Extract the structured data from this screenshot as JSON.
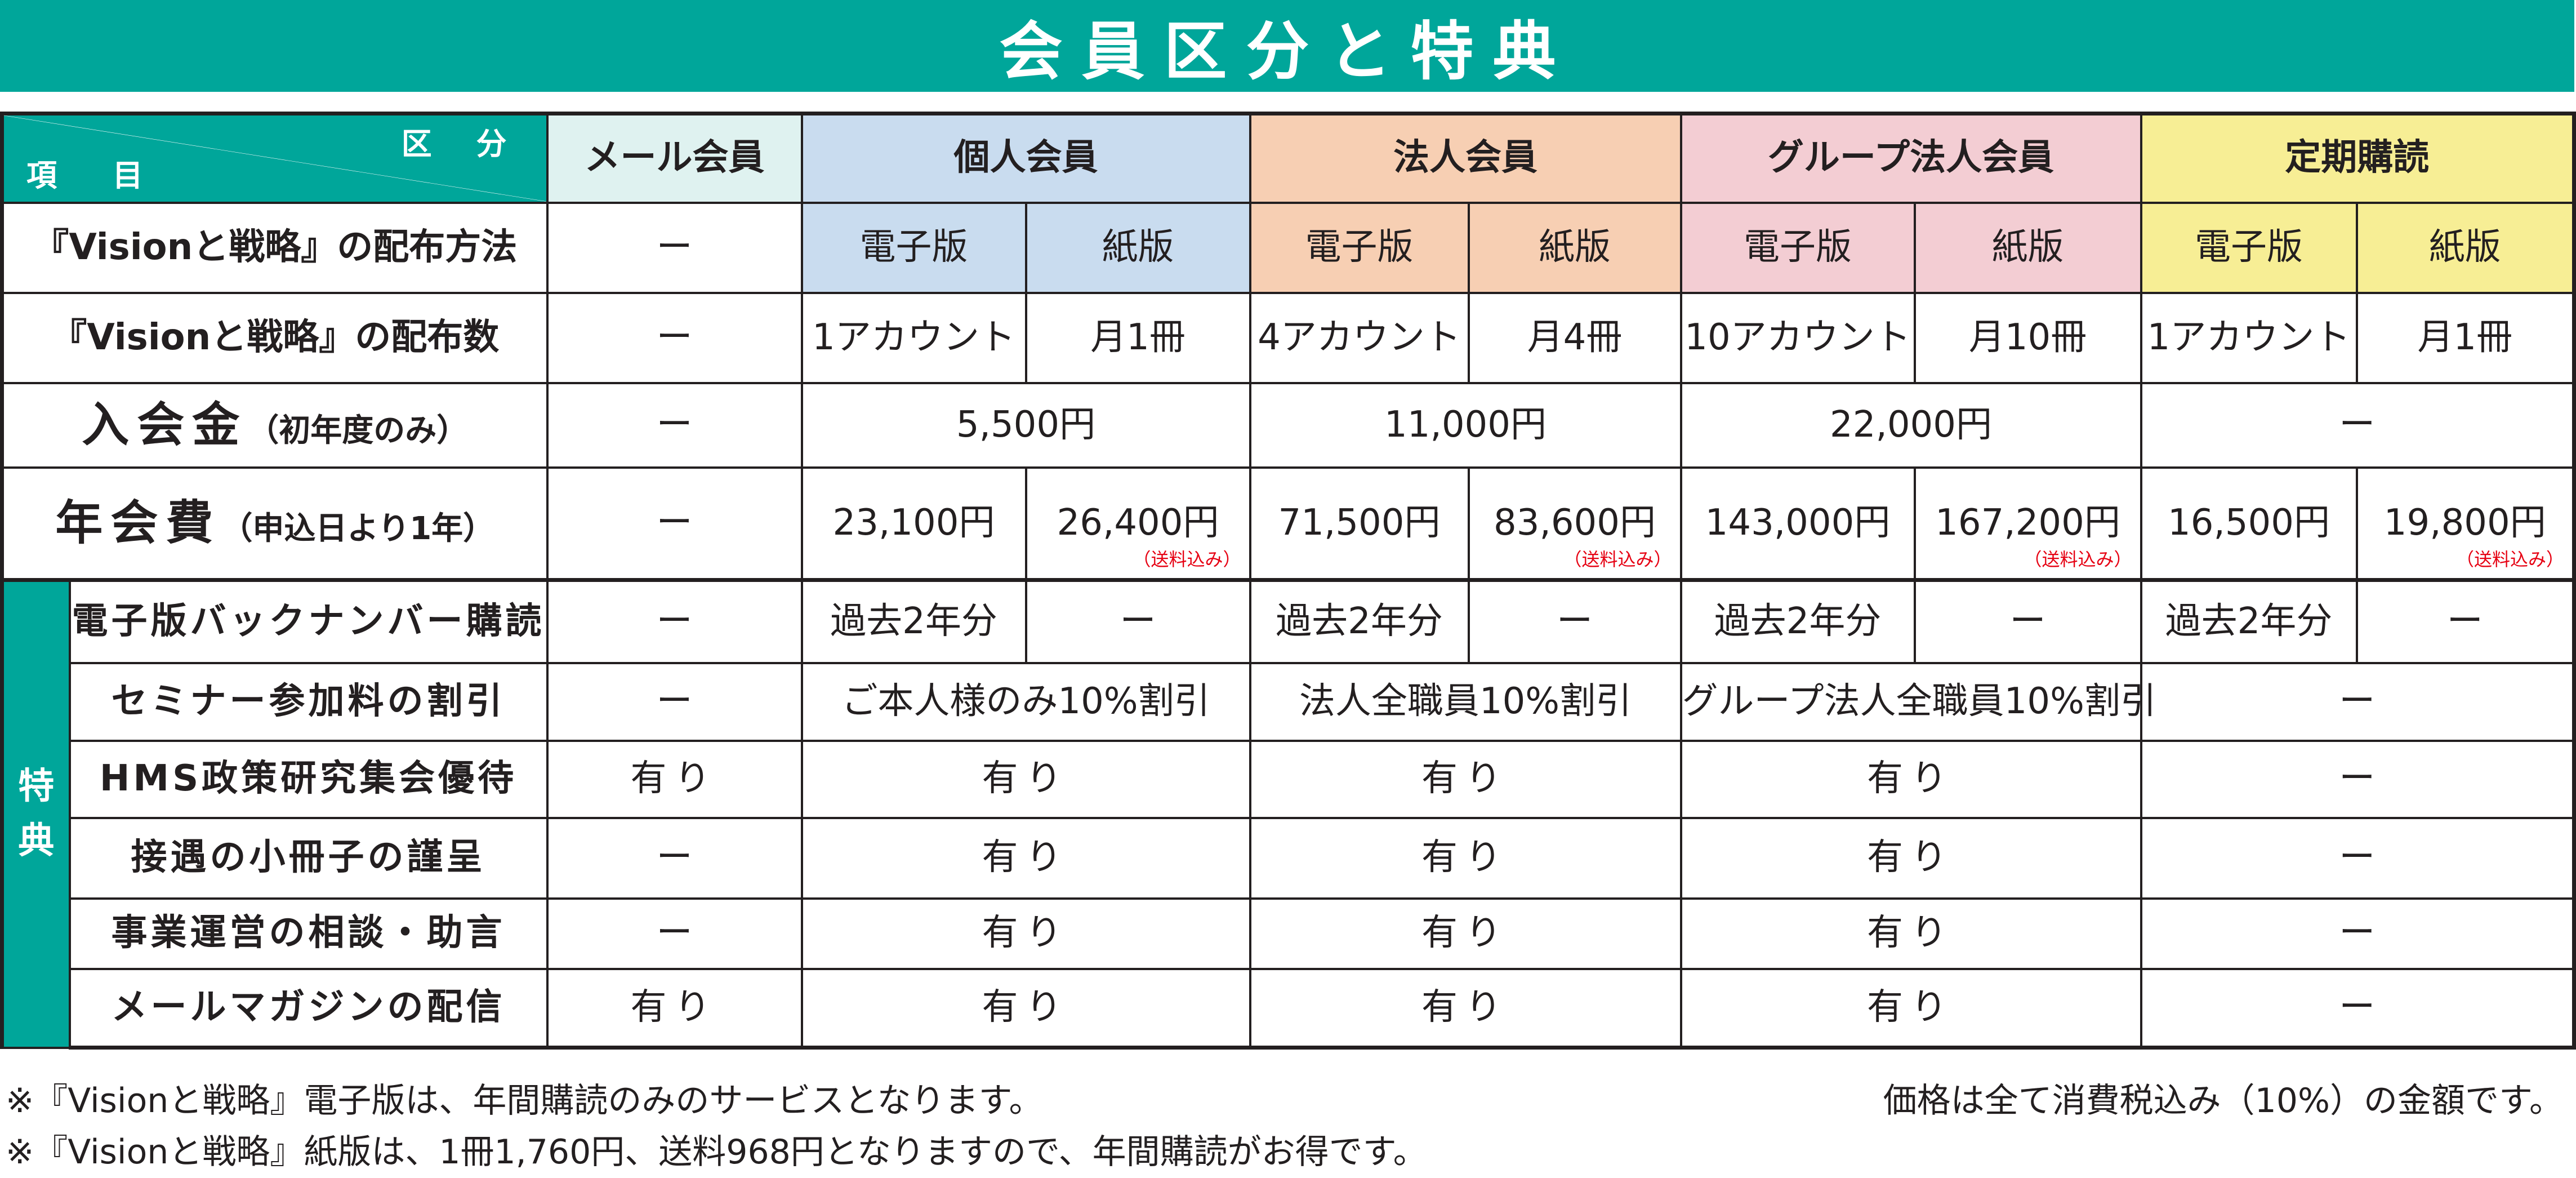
{
  "title": "会員区分と特典",
  "header": {
    "kubun": "区 分",
    "koumoku": "項 目",
    "columns": {
      "mail": "メール会員",
      "individual": "個人会員",
      "corporate": "法人会員",
      "group": "グループ法人会員",
      "subscription": "定期購読"
    }
  },
  "rows": {
    "method": {
      "label": "『Visionと戦略』の配布方法",
      "mail": "ー",
      "indiv_e": "電子版",
      "indiv_p": "紙版",
      "corp_e": "電子版",
      "corp_p": "紙版",
      "group_e": "電子版",
      "group_p": "紙版",
      "sub_e": "電子版",
      "sub_p": "紙版"
    },
    "count": {
      "label": "『Visionと戦略』の配布数",
      "mail": "ー",
      "indiv_e": "1アカウント",
      "indiv_p": "月1冊",
      "corp_e": "4アカウント",
      "corp_p": "月4冊",
      "group_e": "10アカウント",
      "group_p": "月10冊",
      "sub_e": "1アカウント",
      "sub_p": "月1冊"
    },
    "entrance": {
      "label_main": "入会金",
      "label_sub": "（初年度のみ）",
      "mail": "ー",
      "indiv": "5,500円",
      "corp": "11,000円",
      "group": "22,000円",
      "sub": "ー"
    },
    "annual": {
      "label_main": "年会費",
      "label_sub": "（申込日より1年）",
      "mail": "ー",
      "indiv_e": "23,100円",
      "indiv_p": "26,400円",
      "corp_e": "71,500円",
      "corp_p": "83,600円",
      "group_e": "143,000円",
      "group_p": "167,200円",
      "sub_e": "16,500円",
      "sub_p": "19,800円",
      "shipping_note": "（送料込み）"
    }
  },
  "benefits": {
    "section_label_1": "特",
    "section_label_2": "典",
    "backnumber": {
      "label": "電子版バックナンバー購読",
      "mail": "ー",
      "indiv_e": "過去2年分",
      "indiv_p": "ー",
      "corp_e": "過去2年分",
      "corp_p": "ー",
      "group_e": "過去2年分",
      "group_p": "ー",
      "sub_e": "過去2年分",
      "sub_p": "ー"
    },
    "seminar": {
      "label": "セミナー参加料の割引",
      "mail": "ー",
      "indiv": "ご本人様のみ10%割引",
      "corp": "法人全職員10%割引",
      "group": "グループ法人全職員10%割引",
      "sub": "ー"
    },
    "hms": {
      "label": "HMS政策研究集会優待",
      "mail": "有り",
      "indiv": "有り",
      "corp": "有り",
      "group": "有り",
      "sub": "ー"
    },
    "booklet": {
      "label": "接遇の小冊子の謹呈",
      "mail": "ー",
      "indiv": "有り",
      "corp": "有り",
      "group": "有り",
      "sub": "ー"
    },
    "consult": {
      "label": "事業運営の相談・助言",
      "mail": "ー",
      "indiv": "有り",
      "corp": "有り",
      "group": "有り",
      "sub": "ー"
    },
    "magazine": {
      "label": "メールマガジンの配信",
      "mail": "有り",
      "indiv": "有り",
      "corp": "有り",
      "group": "有り",
      "sub": "ー"
    }
  },
  "notes": {
    "note1": "※『Visionと戦略』電子版は、年間購読のみのサービスとなります。",
    "note2": "※『Visionと戦略』紙版は、1冊1,760円、送料968円となりますので、年間購読がお得です。",
    "tax": "価格は全て消費税込み（10%）の金額です。"
  },
  "colors": {
    "teal": "#00a69a",
    "mail_bg": "#dff2f0",
    "individual_bg": "#c9dcef",
    "corporate_bg": "#f7cfb3",
    "group_bg": "#f3cdd3",
    "subscription_bg": "#f7ee95",
    "note_red": "#e60012"
  }
}
